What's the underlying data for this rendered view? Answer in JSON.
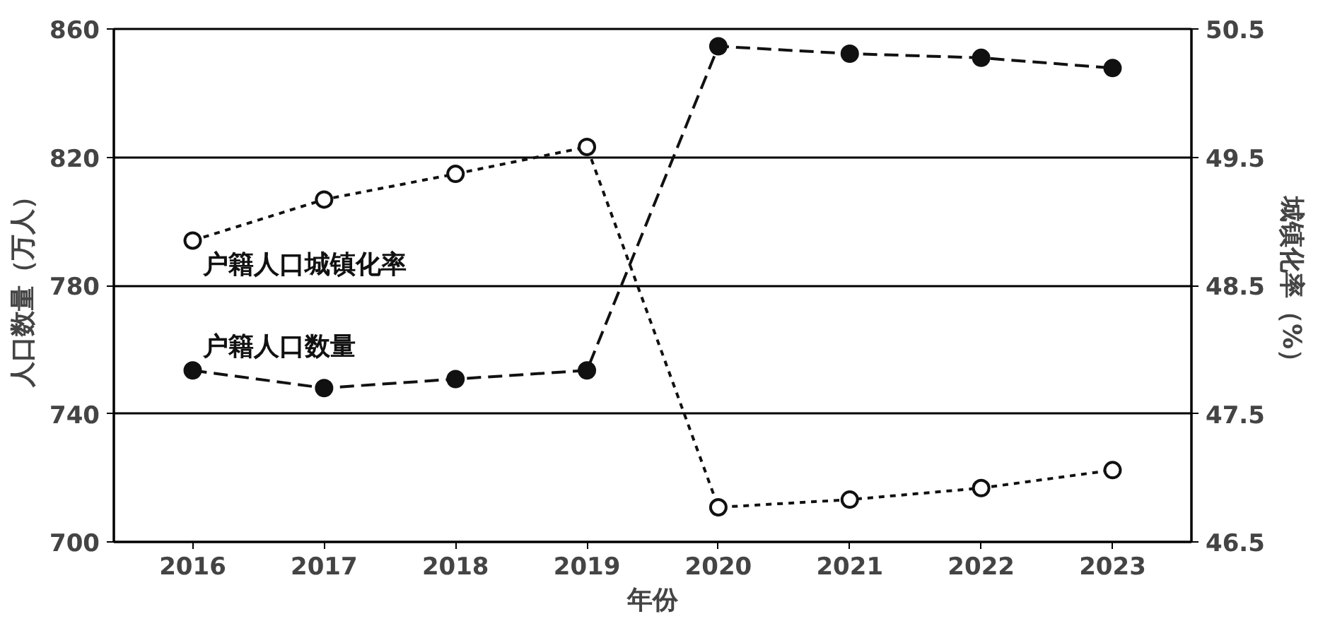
{
  "chart_data": {
    "type": "line",
    "xlabel": "年份",
    "ylabel": "人口数量（万人）",
    "y2label": "城镇化率（%）",
    "categories": [
      "2016",
      "2017",
      "2018",
      "2019",
      "2020",
      "2021",
      "2022",
      "2023"
    ],
    "series": [
      {
        "name": "户籍人口数量",
        "color": "#111111",
        "values": [
          753.5,
          748,
          750.8,
          753.5,
          854.6,
          852.3,
          851,
          847.8
        ],
        "line_style": "dashed"
      },
      {
        "name": "户籍人口城镇化率",
        "color": "#111111",
        "axis": "y2",
        "values": [
          48.85,
          49.17,
          49.37,
          49.58,
          46.77,
          46.83,
          46.92,
          47.06
        ],
        "line_style": "dotted"
      }
    ],
    "ylim": [
      700,
      860
    ],
    "yticks": [
      700,
      740,
      780,
      820,
      860
    ],
    "y2lim": [
      46.5,
      50.5
    ],
    "y2ticks": [
      46.5,
      47.5,
      48.5,
      49.5,
      50.5
    ],
    "grid": "y",
    "marker": "circle"
  }
}
